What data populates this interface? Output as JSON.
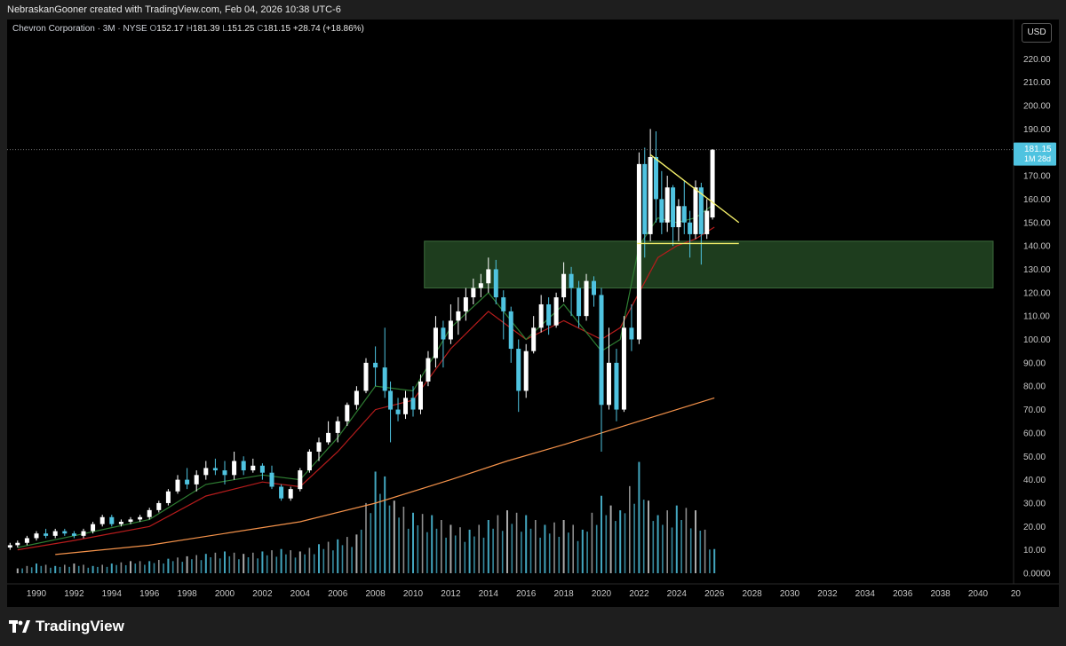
{
  "header": {
    "attribution": "NebraskanGooner created with TradingView.com, Feb 04, 2026 10:38 UTC-6"
  },
  "legend": {
    "symbol": "Chevron Corporation · 3M · NYSE",
    "open_label": "O",
    "open": "152.17",
    "high_label": "H",
    "high": "181.39",
    "low_label": "L",
    "low": "151.25",
    "close_label": "C",
    "close": "181.15",
    "change": "+28.74 (+18.86%)"
  },
  "currency_button": "USD",
  "price_tag": {
    "price": "181.15",
    "countdown": "1M 28d"
  },
  "footer": {
    "brand": "TradingView"
  },
  "colors": {
    "background": "#000000",
    "up_candle": "#ffffff",
    "down_candle": "#4fc3e0",
    "zone": "#1e3d1e",
    "trendline": "#f7f26b",
    "ema_fast": "#2e7d32",
    "ema_mid": "#b71c1c",
    "ema_slow": "#f4924a",
    "volume": "#4fc3e0"
  },
  "chart_data": {
    "type": "candlestick",
    "title": "Chevron Corporation · 3M · NYSE",
    "x_tick_labels": [
      "1990",
      "1992",
      "1994",
      "1996",
      "1998",
      "2000",
      "2002",
      "2004",
      "2006",
      "2008",
      "2010",
      "2012",
      "2014",
      "2016",
      "2018",
      "2020",
      "2022",
      "2024",
      "2026",
      "2028",
      "2030",
      "2032",
      "2034",
      "2036",
      "2038",
      "2040",
      "20"
    ],
    "y_tick_labels": [
      "220.00",
      "210.00",
      "200.00",
      "190.00",
      "170.00",
      "160.00",
      "150.00",
      "140.00",
      "130.00",
      "120.00",
      "110.00",
      "100.00",
      "90.00",
      "80.00",
      "70.00",
      "60.00",
      "50.00",
      "40.00",
      "30.00",
      "20.00",
      "10.00",
      "0.0000"
    ],
    "ylim": [
      0,
      225
    ],
    "xlim": [
      1988.6,
      2040.8
    ],
    "candles": [
      {
        "t": 1988.6,
        "o": 11,
        "h": 13,
        "l": 10,
        "c": 12
      },
      {
        "t": 1989.0,
        "o": 12,
        "h": 14,
        "l": 11,
        "c": 13
      },
      {
        "t": 1989.5,
        "o": 13,
        "h": 16,
        "l": 12,
        "c": 15
      },
      {
        "t": 1990.0,
        "o": 15,
        "h": 18,
        "l": 14,
        "c": 17
      },
      {
        "t": 1990.5,
        "o": 17,
        "h": 19,
        "l": 15,
        "c": 16
      },
      {
        "t": 1991.0,
        "o": 16,
        "h": 19,
        "l": 15,
        "c": 18
      },
      {
        "t": 1991.5,
        "o": 18,
        "h": 19,
        "l": 16,
        "c": 17
      },
      {
        "t": 1992.0,
        "o": 17,
        "h": 18,
        "l": 15,
        "c": 16
      },
      {
        "t": 1992.5,
        "o": 16,
        "h": 19,
        "l": 15,
        "c": 18
      },
      {
        "t": 1993.0,
        "o": 18,
        "h": 22,
        "l": 17,
        "c": 21
      },
      {
        "t": 1993.5,
        "o": 21,
        "h": 25,
        "l": 20,
        "c": 24
      },
      {
        "t": 1994.0,
        "o": 24,
        "h": 25,
        "l": 20,
        "c": 21
      },
      {
        "t": 1994.5,
        "o": 21,
        "h": 23,
        "l": 20,
        "c": 22
      },
      {
        "t": 1995.0,
        "o": 22,
        "h": 24,
        "l": 21,
        "c": 23
      },
      {
        "t": 1995.5,
        "o": 23,
        "h": 25,
        "l": 22,
        "c": 24
      },
      {
        "t": 1996.0,
        "o": 24,
        "h": 28,
        "l": 23,
        "c": 27
      },
      {
        "t": 1996.5,
        "o": 27,
        "h": 31,
        "l": 26,
        "c": 30
      },
      {
        "t": 1997.0,
        "o": 30,
        "h": 36,
        "l": 29,
        "c": 35
      },
      {
        "t": 1997.5,
        "o": 35,
        "h": 42,
        "l": 34,
        "c": 40
      },
      {
        "t": 1998.0,
        "o": 40,
        "h": 45,
        "l": 36,
        "c": 38
      },
      {
        "t": 1998.5,
        "o": 38,
        "h": 44,
        "l": 35,
        "c": 42
      },
      {
        "t": 1999.0,
        "o": 42,
        "h": 48,
        "l": 40,
        "c": 45
      },
      {
        "t": 1999.5,
        "o": 45,
        "h": 49,
        "l": 42,
        "c": 44
      },
      {
        "t": 2000.0,
        "o": 44,
        "h": 48,
        "l": 38,
        "c": 42
      },
      {
        "t": 2000.5,
        "o": 42,
        "h": 52,
        "l": 40,
        "c": 48
      },
      {
        "t": 2001.0,
        "o": 48,
        "h": 50,
        "l": 42,
        "c": 44
      },
      {
        "t": 2001.5,
        "o": 44,
        "h": 49,
        "l": 43,
        "c": 46
      },
      {
        "t": 2002.0,
        "o": 46,
        "h": 47,
        "l": 40,
        "c": 43
      },
      {
        "t": 2002.5,
        "o": 43,
        "h": 46,
        "l": 36,
        "c": 37
      },
      {
        "t": 2003.0,
        "o": 37,
        "h": 38,
        "l": 31,
        "c": 32
      },
      {
        "t": 2003.5,
        "o": 32,
        "h": 37,
        "l": 31,
        "c": 36
      },
      {
        "t": 2004.0,
        "o": 36,
        "h": 45,
        "l": 35,
        "c": 44
      },
      {
        "t": 2004.5,
        "o": 44,
        "h": 53,
        "l": 43,
        "c": 52
      },
      {
        "t": 2005.0,
        "o": 52,
        "h": 58,
        "l": 48,
        "c": 56
      },
      {
        "t": 2005.5,
        "o": 56,
        "h": 65,
        "l": 55,
        "c": 60
      },
      {
        "t": 2006.0,
        "o": 60,
        "h": 67,
        "l": 56,
        "c": 65
      },
      {
        "t": 2006.5,
        "o": 65,
        "h": 73,
        "l": 63,
        "c": 72
      },
      {
        "t": 2007.0,
        "o": 72,
        "h": 80,
        "l": 70,
        "c": 78
      },
      {
        "t": 2007.5,
        "o": 78,
        "h": 92,
        "l": 77,
        "c": 90
      },
      {
        "t": 2008.0,
        "o": 90,
        "h": 97,
        "l": 80,
        "c": 88
      },
      {
        "t": 2008.5,
        "o": 88,
        "h": 105,
        "l": 75,
        "c": 78
      },
      {
        "t": 2008.8,
        "o": 78,
        "h": 82,
        "l": 56,
        "c": 70
      },
      {
        "t": 2009.2,
        "o": 70,
        "h": 75,
        "l": 65,
        "c": 68
      },
      {
        "t": 2009.6,
        "o": 68,
        "h": 78,
        "l": 66,
        "c": 75
      },
      {
        "t": 2010.0,
        "o": 75,
        "h": 80,
        "l": 67,
        "c": 70
      },
      {
        "t": 2010.4,
        "o": 70,
        "h": 85,
        "l": 68,
        "c": 82
      },
      {
        "t": 2010.8,
        "o": 82,
        "h": 95,
        "l": 80,
        "c": 92
      },
      {
        "t": 2011.2,
        "o": 92,
        "h": 110,
        "l": 88,
        "c": 105
      },
      {
        "t": 2011.6,
        "o": 105,
        "h": 108,
        "l": 88,
        "c": 100
      },
      {
        "t": 2012.0,
        "o": 100,
        "h": 115,
        "l": 98,
        "c": 108
      },
      {
        "t": 2012.4,
        "o": 108,
        "h": 118,
        "l": 102,
        "c": 112
      },
      {
        "t": 2012.8,
        "o": 112,
        "h": 122,
        "l": 108,
        "c": 118
      },
      {
        "t": 2013.2,
        "o": 118,
        "h": 126,
        "l": 115,
        "c": 122
      },
      {
        "t": 2013.6,
        "o": 122,
        "h": 128,
        "l": 118,
        "c": 124
      },
      {
        "t": 2014.0,
        "o": 124,
        "h": 135,
        "l": 120,
        "c": 130
      },
      {
        "t": 2014.4,
        "o": 130,
        "h": 134,
        "l": 115,
        "c": 118
      },
      {
        "t": 2014.8,
        "o": 118,
        "h": 121,
        "l": 100,
        "c": 112
      },
      {
        "t": 2015.2,
        "o": 112,
        "h": 114,
        "l": 90,
        "c": 96
      },
      {
        "t": 2015.6,
        "o": 96,
        "h": 100,
        "l": 69,
        "c": 78
      },
      {
        "t": 2016.0,
        "o": 78,
        "h": 98,
        "l": 75,
        "c": 95
      },
      {
        "t": 2016.4,
        "o": 95,
        "h": 110,
        "l": 94,
        "c": 105
      },
      {
        "t": 2016.8,
        "o": 105,
        "h": 119,
        "l": 103,
        "c": 115
      },
      {
        "t": 2017.2,
        "o": 115,
        "h": 118,
        "l": 102,
        "c": 106
      },
      {
        "t": 2017.6,
        "o": 106,
        "h": 120,
        "l": 105,
        "c": 118
      },
      {
        "t": 2018.0,
        "o": 118,
        "h": 133,
        "l": 116,
        "c": 128
      },
      {
        "t": 2018.4,
        "o": 128,
        "h": 131,
        "l": 110,
        "c": 122
      },
      {
        "t": 2018.8,
        "o": 122,
        "h": 125,
        "l": 105,
        "c": 110
      },
      {
        "t": 2019.2,
        "o": 110,
        "h": 128,
        "l": 108,
        "c": 125
      },
      {
        "t": 2019.6,
        "o": 125,
        "h": 127,
        "l": 114,
        "c": 119
      },
      {
        "t": 2020.0,
        "o": 119,
        "h": 122,
        "l": 52,
        "c": 72
      },
      {
        "t": 2020.4,
        "o": 72,
        "h": 105,
        "l": 70,
        "c": 90
      },
      {
        "t": 2020.8,
        "o": 90,
        "h": 96,
        "l": 65,
        "c": 70
      },
      {
        "t": 2021.2,
        "o": 70,
        "h": 110,
        "l": 69,
        "c": 105
      },
      {
        "t": 2021.6,
        "o": 105,
        "h": 115,
        "l": 95,
        "c": 100
      },
      {
        "t": 2022.0,
        "o": 100,
        "h": 180,
        "l": 98,
        "c": 175
      },
      {
        "t": 2022.3,
        "o": 175,
        "h": 182,
        "l": 135,
        "c": 145
      },
      {
        "t": 2022.6,
        "o": 145,
        "h": 190,
        "l": 142,
        "c": 178
      },
      {
        "t": 2022.9,
        "o": 178,
        "h": 189,
        "l": 150,
        "c": 160
      },
      {
        "t": 2023.2,
        "o": 160,
        "h": 172,
        "l": 145,
        "c": 150
      },
      {
        "t": 2023.5,
        "o": 150,
        "h": 170,
        "l": 146,
        "c": 165
      },
      {
        "t": 2023.8,
        "o": 165,
        "h": 166,
        "l": 140,
        "c": 148
      },
      {
        "t": 2024.1,
        "o": 148,
        "h": 160,
        "l": 142,
        "c": 157
      },
      {
        "t": 2024.4,
        "o": 157,
        "h": 168,
        "l": 145,
        "c": 150
      },
      {
        "t": 2024.7,
        "o": 150,
        "h": 155,
        "l": 135,
        "c": 145
      },
      {
        "t": 2025.0,
        "o": 145,
        "h": 168,
        "l": 143,
        "c": 165
      },
      {
        "t": 2025.3,
        "o": 165,
        "h": 167,
        "l": 132,
        "c": 145
      },
      {
        "t": 2025.6,
        "o": 145,
        "h": 160,
        "l": 143,
        "c": 155
      },
      {
        "t": 2025.9,
        "o": 152.17,
        "h": 181.39,
        "l": 151.25,
        "c": 181.15
      }
    ],
    "ema_fast": [
      [
        1989,
        11
      ],
      [
        1992,
        16
      ],
      [
        1996,
        23
      ],
      [
        1999,
        38
      ],
      [
        2002,
        42
      ],
      [
        2004,
        40
      ],
      [
        2006,
        58
      ],
      [
        2008,
        80
      ],
      [
        2010,
        78
      ],
      [
        2012,
        105
      ],
      [
        2014,
        120
      ],
      [
        2016,
        100
      ],
      [
        2018,
        115
      ],
      [
        2020,
        95
      ],
      [
        2021,
        100
      ],
      [
        2022,
        140
      ],
      [
        2023,
        152
      ],
      [
        2024,
        150
      ],
      [
        2025,
        152
      ],
      [
        2026,
        158
      ]
    ],
    "ema_mid": [
      [
        1989,
        10
      ],
      [
        1992,
        14
      ],
      [
        1996,
        20
      ],
      [
        1999,
        33
      ],
      [
        2002,
        39
      ],
      [
        2004,
        37
      ],
      [
        2006,
        52
      ],
      [
        2008,
        70
      ],
      [
        2010,
        74
      ],
      [
        2012,
        96
      ],
      [
        2014,
        112
      ],
      [
        2016,
        100
      ],
      [
        2018,
        108
      ],
      [
        2020,
        100
      ],
      [
        2021,
        105
      ],
      [
        2022,
        120
      ],
      [
        2023,
        135
      ],
      [
        2024,
        140
      ],
      [
        2025,
        143
      ],
      [
        2026,
        148
      ]
    ],
    "ema_slow": [
      [
        1991,
        8
      ],
      [
        1996,
        12
      ],
      [
        2000,
        17
      ],
      [
        2004,
        22
      ],
      [
        2008,
        30
      ],
      [
        2012,
        40
      ],
      [
        2015,
        48
      ],
      [
        2018,
        55
      ],
      [
        2020,
        60
      ],
      [
        2022,
        65
      ],
      [
        2024,
        70
      ],
      [
        2026,
        75
      ]
    ],
    "volume": [
      [
        1989,
        2
      ],
      [
        1990,
        4
      ],
      [
        1991,
        3
      ],
      [
        1992,
        4
      ],
      [
        1993,
        3
      ],
      [
        1994,
        4
      ],
      [
        1995,
        5
      ],
      [
        1996,
        5
      ],
      [
        1997,
        6
      ],
      [
        1998,
        7
      ],
      [
        1999,
        8
      ],
      [
        2000,
        9
      ],
      [
        2001,
        8
      ],
      [
        2002,
        9
      ],
      [
        2003,
        10
      ],
      [
        2004,
        9
      ],
      [
        2005,
        12
      ],
      [
        2006,
        14
      ],
      [
        2007,
        16
      ],
      [
        2008,
        42
      ],
      [
        2008.5,
        40
      ],
      [
        2009,
        30
      ],
      [
        2010,
        25
      ],
      [
        2011,
        24
      ],
      [
        2012,
        20
      ],
      [
        2013,
        18
      ],
      [
        2014,
        22
      ],
      [
        2015,
        26
      ],
      [
        2016,
        24
      ],
      [
        2017,
        20
      ],
      [
        2018,
        22
      ],
      [
        2019,
        18
      ],
      [
        2020,
        32
      ],
      [
        2020.5,
        28
      ],
      [
        2021,
        26
      ],
      [
        2022,
        46
      ],
      [
        2022.5,
        30
      ],
      [
        2023,
        24
      ],
      [
        2024,
        28
      ],
      [
        2025,
        26
      ],
      [
        2026,
        10
      ]
    ],
    "volume_max_ref": 110,
    "zone": {
      "x_start": 2010.6,
      "x_end": 2040.8,
      "y_low": 122,
      "y_high": 142
    },
    "trendline": {
      "x1": 2022.6,
      "y1": 179,
      "x2": 2027.3,
      "y2": 150
    },
    "support_line": {
      "x1": 2021.9,
      "y1": 141,
      "x2": 2027.3,
      "y2": 141
    },
    "last_price_line": 181.15
  }
}
